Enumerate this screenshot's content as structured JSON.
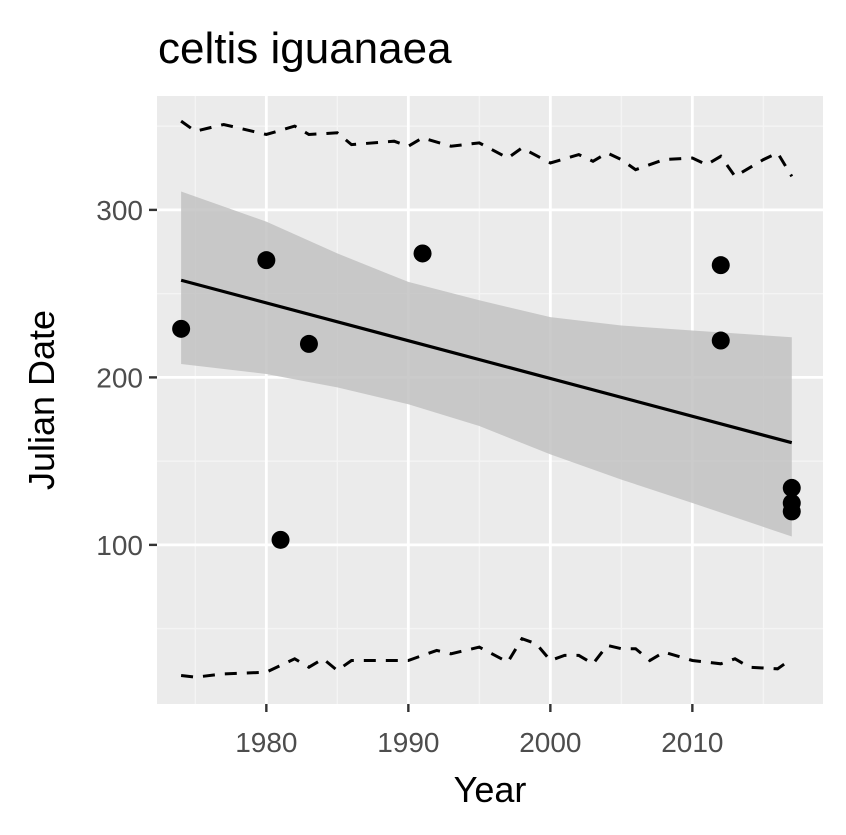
{
  "chart_data": {
    "type": "scatter",
    "title": "celtis iguanaea",
    "xlabel": "Year",
    "ylabel": "Julian Date",
    "xlim": [
      1972.3,
      2019.2
    ],
    "ylim": [
      5,
      368
    ],
    "x_ticks": [
      1980,
      1990,
      2000,
      2010
    ],
    "y_ticks": [
      100,
      200,
      300
    ],
    "grid": true,
    "points": [
      {
        "x": 1974,
        "y": 229
      },
      {
        "x": 1980,
        "y": 270
      },
      {
        "x": 1981,
        "y": 103
      },
      {
        "x": 1983,
        "y": 220
      },
      {
        "x": 1991,
        "y": 274
      },
      {
        "x": 2012,
        "y": 267
      },
      {
        "x": 2012,
        "y": 222
      },
      {
        "x": 2017,
        "y": 134
      },
      {
        "x": 2017,
        "y": 125
      },
      {
        "x": 2017,
        "y": 120
      }
    ],
    "trend_line": {
      "x": [
        1974,
        2017
      ],
      "y": [
        258,
        161
      ]
    },
    "confidence_band": {
      "x": [
        1974,
        1980,
        1985,
        1990,
        1995,
        2000,
        2005,
        2010,
        2017
      ],
      "upper": [
        311,
        293,
        274,
        257,
        246,
        236,
        231,
        228,
        224
      ],
      "lower": [
        208,
        202,
        194,
        184,
        171,
        154,
        139,
        125,
        105
      ]
    },
    "upper_dashed": {
      "x": [
        1974,
        1975,
        1977,
        1980,
        1982,
        1983,
        1985,
        1986,
        1989,
        1990,
        1991,
        1993,
        1995,
        1997,
        1998,
        2000,
        2002,
        2003,
        2004,
        2005,
        2006,
        2008,
        2010,
        2011,
        2012,
        2013,
        2015,
        2016,
        2017
      ],
      "y": [
        353,
        347,
        351,
        345,
        350,
        345,
        346,
        339,
        341,
        338,
        343,
        338,
        340,
        331,
        337,
        328,
        333,
        329,
        334,
        330,
        324,
        330,
        331,
        327,
        332,
        320,
        330,
        334,
        320
      ]
    },
    "lower_dashed": {
      "x": [
        1974,
        1975,
        1977,
        1980,
        1981,
        1982,
        1983,
        1984,
        1985,
        1986,
        1987,
        1990,
        1992,
        1993,
        1995,
        1997,
        1998,
        1999,
        2000,
        2001,
        2002,
        2003,
        2004,
        2005,
        2006,
        2007,
        2008,
        2010,
        2011,
        2012,
        2013,
        2014,
        2016,
        2017
      ],
      "y": [
        22,
        21,
        23,
        24,
        28,
        32,
        27,
        32,
        25,
        31,
        31,
        31,
        37,
        35,
        39,
        30,
        44,
        41,
        31,
        34,
        34,
        29,
        40,
        38,
        38,
        31,
        36,
        31,
        30,
        29,
        32,
        27,
        26,
        32
      ]
    },
    "colors": {
      "panel_background": "#ebebeb",
      "grid_major": "#ffffff",
      "grid_minor": "#f4f4f4",
      "band": "#c2c2c2",
      "line": "#000000",
      "points": "#000000",
      "tick_text": "#4d4d4d"
    }
  }
}
